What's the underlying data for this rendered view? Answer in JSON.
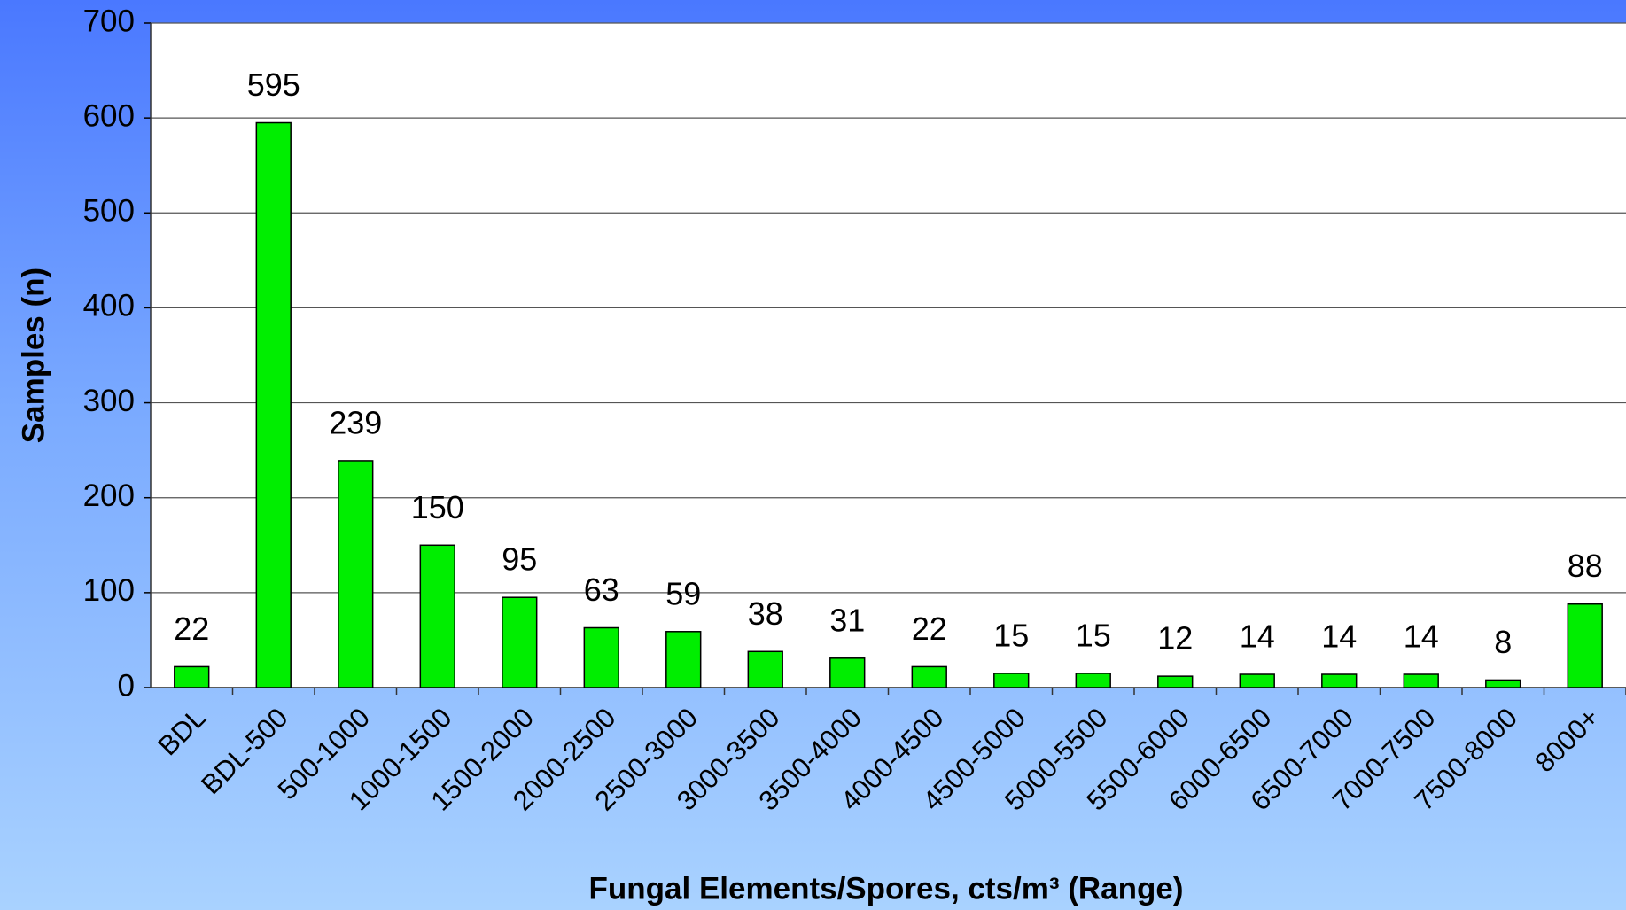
{
  "chart_data": {
    "type": "bar",
    "x_label": "Fungal Elements/Spores, cts/m³ (Range)",
    "y_label": "Samples (n)",
    "categories": [
      "BDL",
      "BDL-500",
      "500-1000",
      "1000-1500",
      "1500-2000",
      "2000-2500",
      "2500-3000",
      "3000-3500",
      "3500-4000",
      "4000-4500",
      "4500-5000",
      "5000-5500",
      "5500-6000",
      "6000-6500",
      "6500-7000",
      "7000-7500",
      "7500-8000",
      "8000+"
    ],
    "values": [
      22,
      595,
      239,
      150,
      95,
      63,
      59,
      38,
      31,
      22,
      15,
      15,
      12,
      14,
      14,
      14,
      8,
      88
    ],
    "color": "#00ee00",
    "ylim": [
      0,
      700
    ],
    "yticks": [
      0,
      100,
      200,
      300,
      400,
      500,
      600,
      700
    ],
    "grid": true
  }
}
